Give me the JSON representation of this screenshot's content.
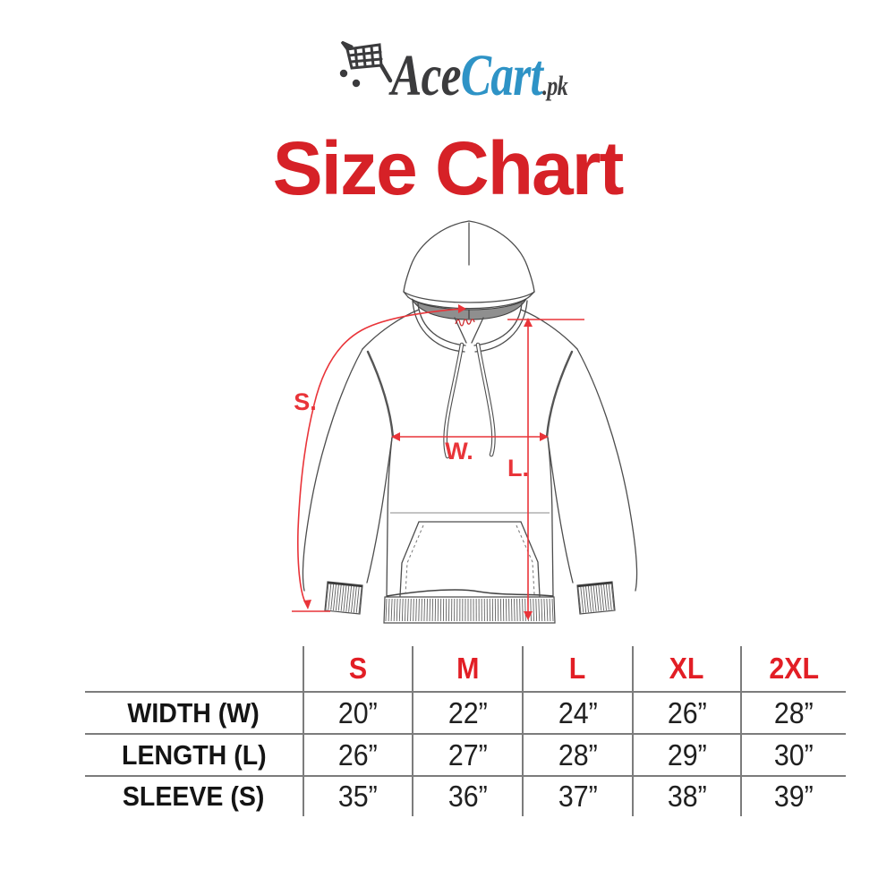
{
  "logo": {
    "ace": "Ace",
    "cart": "Cart",
    "tld": ".pk",
    "icon": "shopping-cart-icon",
    "color_dark": "#3b3b3d",
    "color_blue": "#2e93c6"
  },
  "title": {
    "text": "Size Chart",
    "color": "#d62127"
  },
  "diagram": {
    "garment": "hoodie-front-line-art",
    "sleeve_label": "S.",
    "width_label": "W.",
    "length_label": "L.",
    "annotation_color": "#e93439"
  },
  "size_table": {
    "columns": [
      "S",
      "M",
      "L",
      "XL",
      "2XL"
    ],
    "rows": [
      {
        "label": "WIDTH (W)",
        "values": [
          "20”",
          "22”",
          "24”",
          "26”",
          "28”"
        ]
      },
      {
        "label": "LENGTH (L)",
        "values": [
          "26”",
          "27”",
          "28”",
          "29”",
          "30”"
        ]
      },
      {
        "label": "SLEEVE (S)",
        "values": [
          "35”",
          "36”",
          "37”",
          "38”",
          "39”"
        ]
      }
    ],
    "line_color": "#7c7c7c",
    "header_color": "#e21e25"
  }
}
